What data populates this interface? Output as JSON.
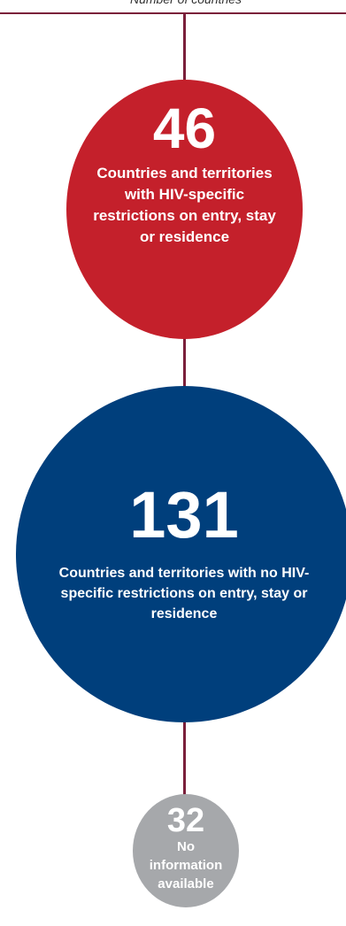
{
  "header": {
    "title": "Number of countries"
  },
  "colors": {
    "connector": "#7a1f3a",
    "restricted": "#c4202b",
    "unrestricted": "#003f7c",
    "no_info": "#a6a8ab"
  },
  "nodes": [
    {
      "value": "46",
      "label": "Countries and territories with HIV-specific restrictions on entry, stay or residence"
    },
    {
      "value": "131",
      "label": "Countries and territories with no HIV-specific restrictions on entry, stay or residence"
    },
    {
      "value": "32",
      "label": "No information available"
    }
  ]
}
